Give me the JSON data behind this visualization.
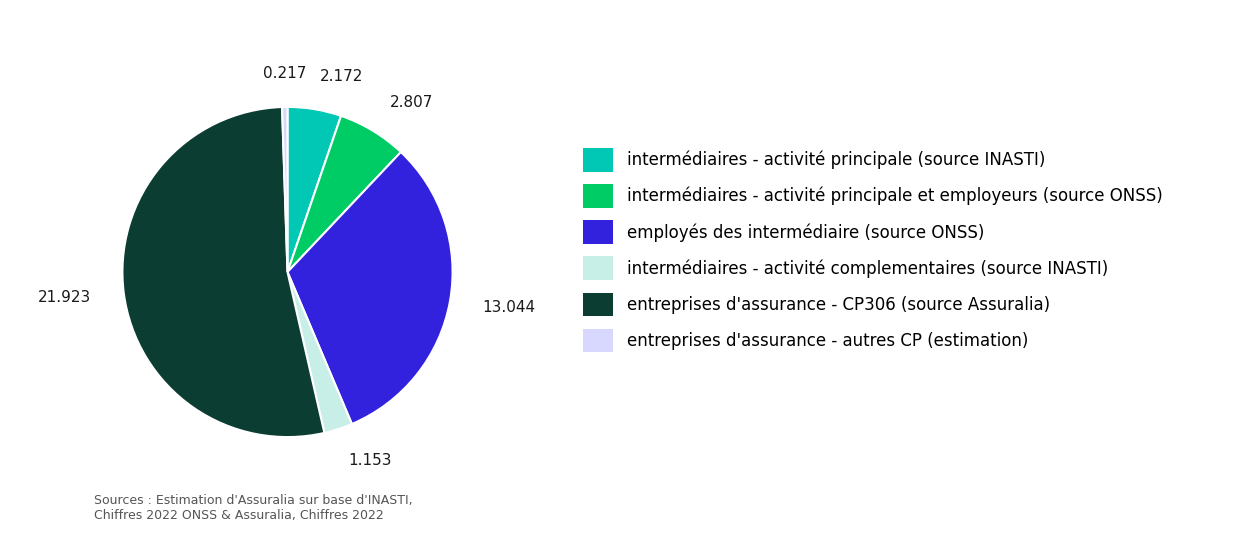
{
  "values": [
    2.172,
    2.807,
    13.044,
    1.153,
    21.923,
    0.217
  ],
  "labels": [
    "2.172",
    "2.807",
    "13.044",
    "1.153",
    "21.923",
    "0.217"
  ],
  "colors": [
    "#00C8B4",
    "#00CC66",
    "#3322DD",
    "#C8EEE8",
    "#0C3D32",
    "#D8D8FF"
  ],
  "legend_labels": [
    "intermédiaires - activité principale (source INASTI)",
    "intermédiaires - activité principale et employeurs (source ONSS)",
    "employés des intermédiaire (source ONSS)",
    "intermédiaires - activité complementaires (source INASTI)",
    "entreprises d'assurance - CP306 (source Assuralia)",
    "entreprises d'assurance - autres CP (estimation)"
  ],
  "legend_colors": [
    "#00C8B4",
    "#00CC66",
    "#3322DD",
    "#C8EEE8",
    "#0C3D32",
    "#D8D8FF"
  ],
  "source_text": "Sources : Estimation d'Assuralia sur base d'INASTI,\nChiffres 2022 ONSS & Assuralia, Chiffres 2022",
  "background_color": "#FFFFFF",
  "startangle": 90,
  "label_fontsize": 11,
  "legend_fontsize": 12
}
